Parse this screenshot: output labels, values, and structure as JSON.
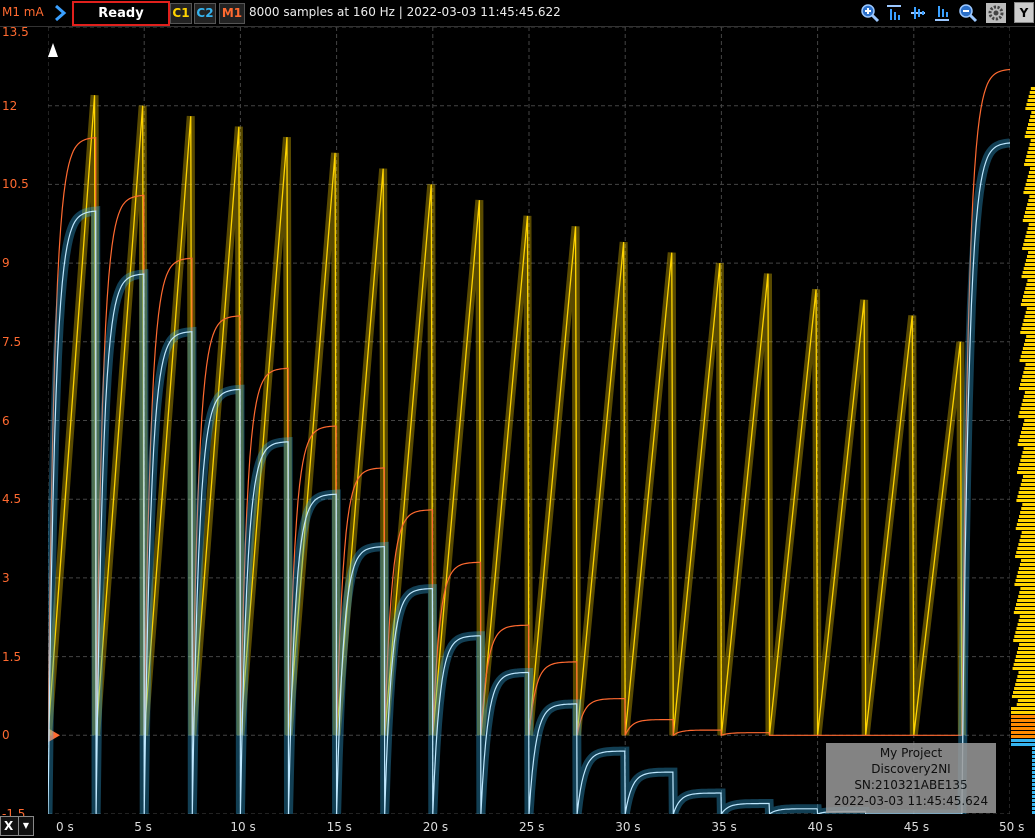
{
  "toolbar": {
    "unit_label": "M1 mA",
    "status": "Ready",
    "channels": [
      "C1",
      "C2",
      "M1"
    ],
    "info": "8000 samples at 160 Hz | 2022-03-03 11:45:45.622",
    "y_button": "Y",
    "x_selector": "X"
  },
  "colors": {
    "c1": "#ffd400",
    "c2": "#35b4f0",
    "m1": "#ff6a30",
    "status_border": "#e0201c"
  },
  "icons": [
    "zoom-in-icon",
    "align-top-icon",
    "align-middle-icon",
    "align-bottom-icon",
    "zoom-out-icon",
    "gear-icon"
  ],
  "stamp": {
    "line1": "My Project",
    "line2": "Discovery2NI",
    "line3": "SN:210321ABE135",
    "line4": "2022-03-03 11:45:45.624"
  },
  "chart_data": {
    "type": "line",
    "ylabel": "M1 mA",
    "y_ticks": [
      "13.5",
      "12",
      "10.5",
      "9",
      "7.5",
      "6",
      "4.5",
      "3",
      "1.5",
      "0",
      "-1.5"
    ],
    "x_ticks": [
      "0 s",
      "5 s",
      "10 s",
      "15 s",
      "20 s",
      "25 s",
      "30 s",
      "35 s",
      "40 s",
      "45 s",
      "50 s"
    ],
    "ylim": [
      -1.5,
      13.5
    ],
    "xlim": [
      0,
      50
    ],
    "grid": true,
    "sample_rate_hz": 160,
    "samples": 8000,
    "series": [
      {
        "name": "C1",
        "color": "#ffd400",
        "shape": "sawtooth",
        "cycle_starts": [
          0,
          2.5,
          5,
          7.5,
          10,
          12.5,
          15,
          17.5,
          20,
          22.5,
          25,
          27.5,
          30,
          32.5,
          35,
          37.5,
          40,
          42.5,
          45
        ],
        "peaks": [
          12.2,
          12.0,
          11.8,
          11.6,
          11.4,
          11.1,
          10.8,
          10.5,
          10.2,
          9.9,
          9.7,
          9.4,
          9.2,
          9.0,
          8.8,
          8.5,
          8.3,
          8.0,
          7.5
        ]
      },
      {
        "name": "M1",
        "color": "#ff6a30",
        "shape": "charge-decay",
        "cycle_starts": [
          0,
          5,
          10,
          15,
          20,
          25,
          30,
          35,
          40,
          45
        ],
        "peaks": [
          11.4,
          10.3,
          9.1,
          8.0,
          7.0,
          5.9,
          5.1,
          4.3,
          3.3,
          2.1,
          1.4,
          0.7,
          0.3,
          0.1,
          0.05,
          0.0,
          0.0,
          0.0,
          0.0
        ],
        "end_peak": 12.7
      },
      {
        "name": "C2",
        "color": "#35b4f0",
        "shape": "charge-decay",
        "peaks": [
          10.0,
          8.8,
          7.7,
          6.6,
          5.6,
          4.6,
          3.6,
          2.8,
          1.9,
          1.2,
          0.6,
          -0.3,
          -0.7,
          -1.1,
          -1.3,
          -1.4,
          -1.45,
          -1.5,
          -1.5
        ],
        "end_peak": 11.3
      }
    ]
  }
}
